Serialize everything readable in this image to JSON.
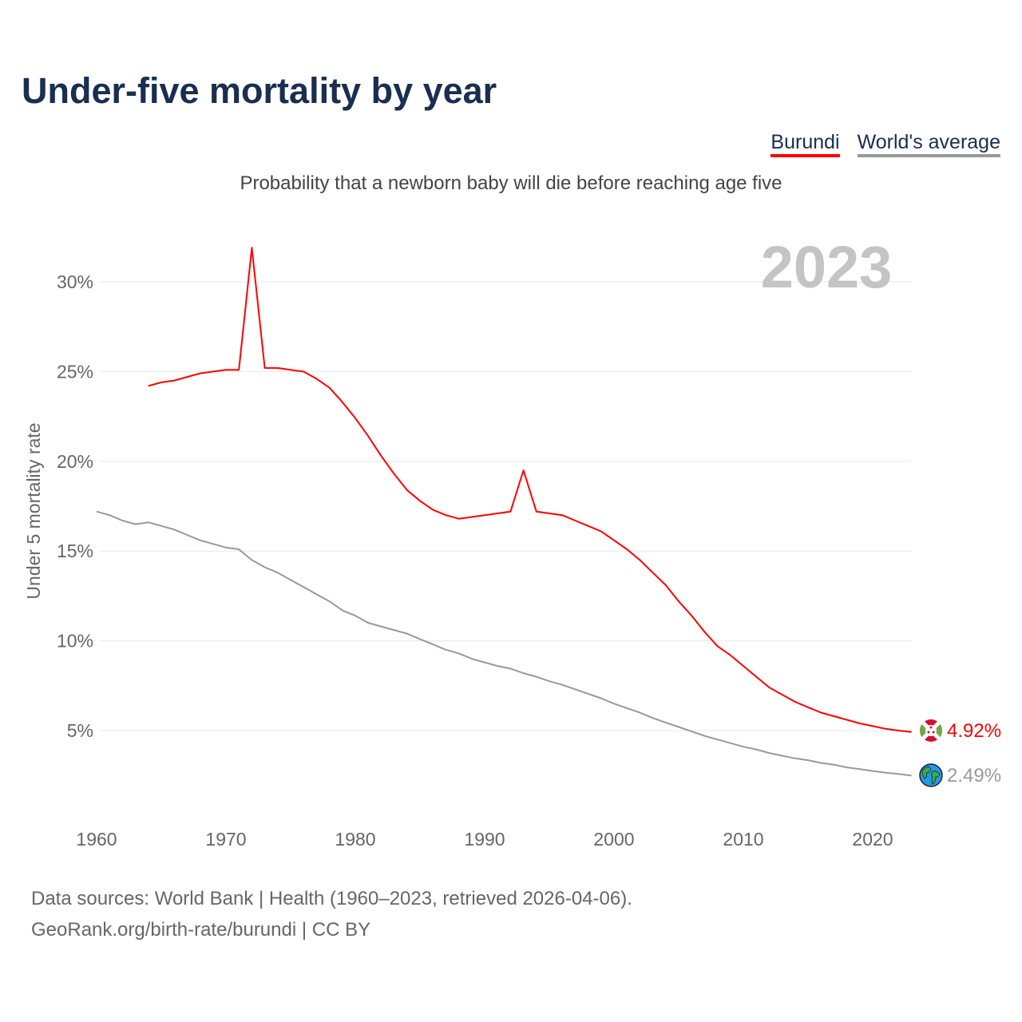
{
  "title": "Under-five mortality by year",
  "subtitle": "Probability that a newborn baby will die before reaching age five",
  "legend": {
    "burundi": "Burundi",
    "world": "World's average"
  },
  "year_label": "2023",
  "end_labels": {
    "burundi": "4.92%",
    "world": "2.49%"
  },
  "footer": {
    "line1": "Data sources: World Bank | Health (1960–2023, retrieved 2026-04-06).",
    "line2": "GeoRank.org/birth-rate/burundi | CC BY"
  },
  "colors": {
    "burundi": "#ff0000",
    "world": "#999999",
    "title": "#1a2e50"
  },
  "icons": {
    "burundi": "burundi-flag-icon",
    "world": "globe-icon"
  },
  "chart_data": {
    "type": "line",
    "title": "Under-five mortality by year",
    "ylabel": "Under 5 mortality rate",
    "xlabel": "",
    "xlim": [
      1960,
      2023
    ],
    "ylim": [
      0.5,
      33
    ],
    "xticks": [
      1960,
      1970,
      1980,
      1990,
      2000,
      2010,
      2020
    ],
    "xtick_labels": [
      "1960",
      "1970",
      "1980",
      "1990",
      "2000",
      "2010",
      "2020"
    ],
    "yticks": [
      5,
      10,
      15,
      20,
      25,
      30
    ],
    "ytick_labels": [
      "5%",
      "10%",
      "15%",
      "20%",
      "25%",
      "30%"
    ],
    "grid": true,
    "legend_position": "top-right",
    "series": [
      {
        "name": "Burundi",
        "start_year": 1964,
        "values": [
          24.2,
          24.4,
          24.5,
          24.7,
          24.9,
          25.0,
          25.1,
          25.1,
          31.9,
          25.2,
          25.2,
          25.1,
          25.0,
          24.6,
          24.1,
          23.3,
          22.4,
          21.4,
          20.3,
          19.3,
          18.4,
          17.8,
          17.3,
          17.0,
          16.8,
          16.9,
          17.0,
          17.1,
          17.2,
          19.5,
          17.2,
          17.1,
          17.0,
          16.7,
          16.4,
          16.1,
          15.6,
          15.1,
          14.5,
          13.8,
          13.1,
          12.2,
          11.4,
          10.5,
          9.7,
          9.2,
          8.6,
          8.0,
          7.4,
          7.0,
          6.6,
          6.3,
          6.0,
          5.8,
          5.6,
          5.4,
          5.25,
          5.1,
          5.0,
          4.92
        ]
      },
      {
        "name": "World's average",
        "start_year": 1960,
        "values": [
          17.2,
          17.0,
          16.7,
          16.5,
          16.6,
          16.4,
          16.2,
          15.9,
          15.6,
          15.4,
          15.2,
          15.1,
          14.5,
          14.1,
          13.8,
          13.4,
          13.0,
          12.6,
          12.2,
          11.7,
          11.4,
          11.0,
          10.8,
          10.6,
          10.4,
          10.1,
          9.8,
          9.5,
          9.3,
          9.0,
          8.8,
          8.6,
          8.45,
          8.2,
          8.0,
          7.75,
          7.55,
          7.3,
          7.05,
          6.8,
          6.5,
          6.25,
          6.0,
          5.7,
          5.45,
          5.2,
          4.95,
          4.7,
          4.5,
          4.3,
          4.1,
          3.95,
          3.75,
          3.6,
          3.45,
          3.35,
          3.2,
          3.1,
          2.95,
          2.85,
          2.75,
          2.65,
          2.58,
          2.49
        ]
      }
    ]
  }
}
